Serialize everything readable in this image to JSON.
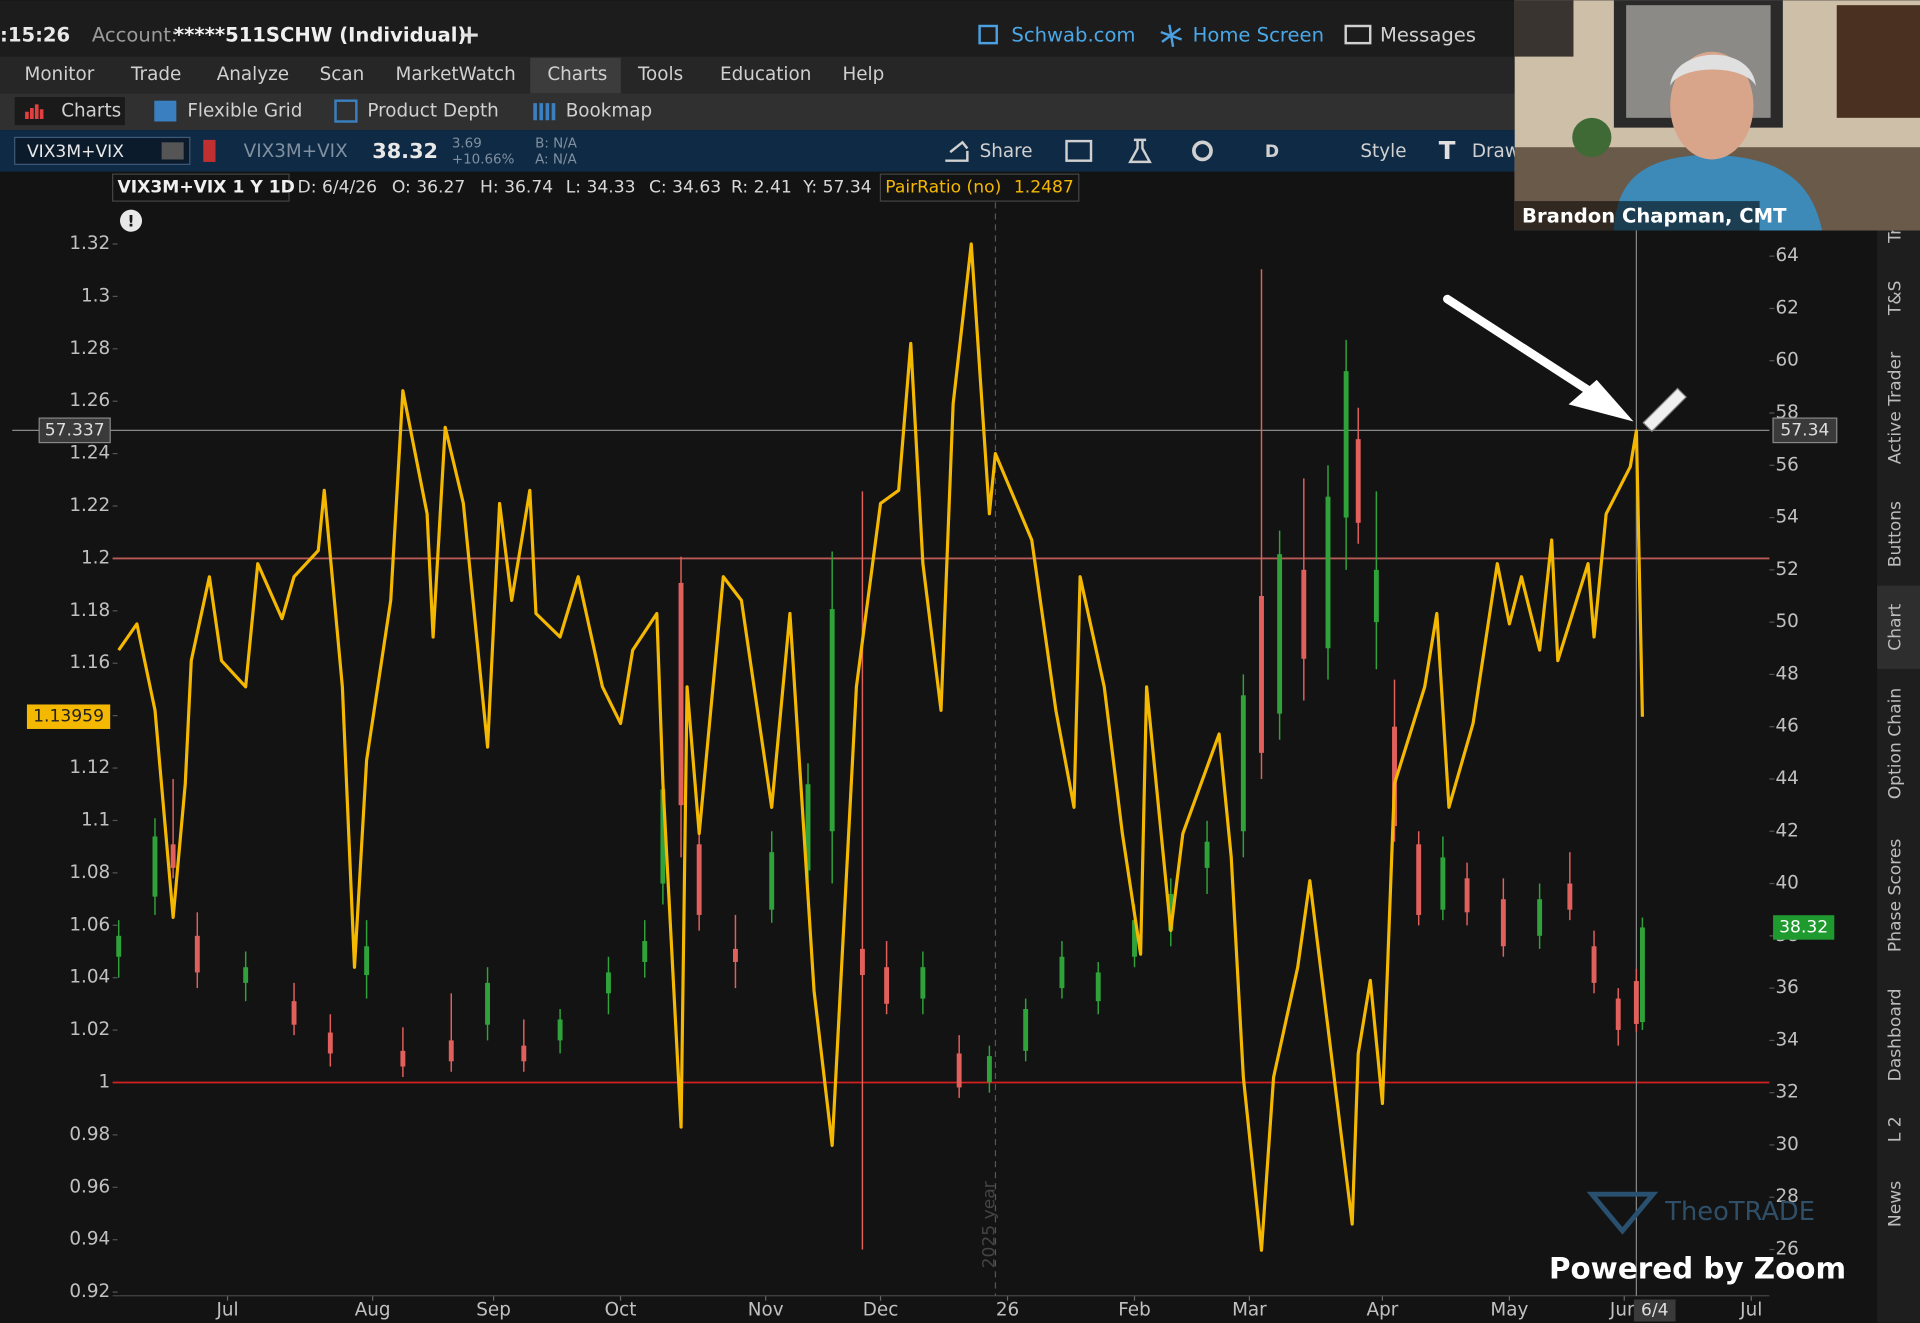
{
  "toolbar": {
    "time": ":15:26",
    "account_label": "Account:",
    "account": "*****511SCHW (Individual)",
    "links": [
      "Schwab.com",
      "Home Screen",
      "Messages"
    ]
  },
  "menu": [
    "Monitor",
    "Trade",
    "Analyze",
    "Scan",
    "MarketWatch",
    "Charts",
    "Tools",
    "Education",
    "Help"
  ],
  "subtabs": [
    "Charts",
    "Flexible Grid",
    "Product Depth",
    "Bookmap"
  ],
  "symbol_bar": {
    "symbol": "VIX3M+VIX",
    "description": "VIX3M+VIX",
    "last": "38.32",
    "change": "3.69",
    "change_pct": "+10.66%",
    "bid": "B: N/A",
    "ask": "A: N/A",
    "share": "Share",
    "period": "D",
    "style": "Style",
    "draw": "Draw"
  },
  "header": [
    "VIX3M+VIX 1 Y 1D",
    "D: 6/4/26",
    "O: 36.27",
    "H: 36.74",
    "L: 34.33",
    "C: 34.63",
    "R: 2.41",
    "Y: 57.34",
    "PairRatio (no)",
    "1.2487"
  ],
  "sidebar": [
    "Tr",
    "T&S",
    "Active Trader",
    "Buttons",
    "Chart",
    "Option Chain",
    "Phase Scores",
    "Dashboard",
    "L 2",
    "News"
  ],
  "video": {
    "name": "Brandon Chapman, CMT"
  },
  "watermark": "TheoTRADE",
  "zoom": "Powered by Zoom",
  "chart_data": {
    "type": "candlestick",
    "year_label": "2025 year",
    "xlim": [
      0,
      274
    ],
    "xticks": [
      {
        "value": 19,
        "label": "Jul"
      },
      {
        "value": 43,
        "label": "Aug"
      },
      {
        "value": 63,
        "label": "Sep"
      },
      {
        "value": 84,
        "label": "Oct"
      },
      {
        "value": 108,
        "label": "Nov"
      },
      {
        "value": 127,
        "label": "Dec"
      },
      {
        "value": 148,
        "label": "26"
      },
      {
        "value": 169,
        "label": "Feb"
      },
      {
        "value": 188,
        "label": "Mar"
      },
      {
        "value": 210,
        "label": "Apr"
      },
      {
        "value": 231,
        "label": "May"
      },
      {
        "value": 250,
        "label": "Jun"
      },
      {
        "value": 271,
        "label": "Jul"
      }
    ],
    "ylim": [
      0.9186,
      1.3359
    ],
    "yticks": [
      0.92,
      0.94,
      0.96,
      0.98,
      1,
      1.02,
      1.04,
      1.06,
      1.08,
      1.1,
      1.12,
      1.14,
      1.16,
      1.18,
      1.2,
      1.22,
      1.24,
      1.26,
      1.28,
      1.3,
      1.32
    ],
    "y2lim": [
      24.23,
      66.06
    ],
    "y2ticks": [
      26,
      28,
      30,
      32,
      34,
      36,
      38,
      40,
      42,
      44,
      46,
      48,
      50,
      52,
      54,
      56,
      58,
      60,
      62,
      64
    ],
    "hlines": [
      {
        "value": 1.2,
        "color": "#b85a55"
      },
      {
        "value": 1,
        "color": "#d42020"
      }
    ],
    "year_boundary": 146,
    "cursor": {
      "x": 252,
      "label": "6/4"
    },
    "crosshair": {
      "value": 57.337,
      "label": "57.34"
    },
    "series": [
      {
        "name": "VIX3M+VIX",
        "axis": "y2",
        "up_color": "#2fa33a",
        "down_color": "#e2605c",
        "x": [
          1,
          7,
          10,
          14,
          22,
          30,
          36,
          42,
          48,
          56,
          62,
          68,
          74,
          82,
          88,
          91,
          94,
          97,
          103,
          109,
          115,
          119,
          124,
          128,
          134,
          140,
          145,
          151,
          157,
          163,
          169,
          175,
          181,
          187,
          190,
          193,
          197,
          201,
          204,
          206,
          209,
          212,
          216,
          220,
          224,
          230,
          236,
          241,
          245,
          249,
          252,
          253
        ],
        "open": [
          37.2,
          39.5,
          41.5,
          38.0,
          36.2,
          35.5,
          34.3,
          36.5,
          33.6,
          34.0,
          34.6,
          33.8,
          34.0,
          35.8,
          37.0,
          40.0,
          51.5,
          41.5,
          37.5,
          39.0,
          40.5,
          42.0,
          37.5,
          36.8,
          35.6,
          33.5,
          32.4,
          33.6,
          36.0,
          35.5,
          37.2,
          38.2,
          40.6,
          42.0,
          51.0,
          46.5,
          52.0,
          49.0,
          54.0,
          57.0,
          50.0,
          46.0,
          41.5,
          39.0,
          40.2,
          39.4,
          38.0,
          40.0,
          37.6,
          35.6,
          36.27,
          34.7
        ],
        "high": [
          38.6,
          42.5,
          44.0,
          38.9,
          37.4,
          36.2,
          35.0,
          38.6,
          34.5,
          35.8,
          36.8,
          34.8,
          35.2,
          37.2,
          38.6,
          44.5,
          52.5,
          42.5,
          38.8,
          42.0,
          44.6,
          52.7,
          55.0,
          37.8,
          37.4,
          34.2,
          33.8,
          35.6,
          37.8,
          37.0,
          39.2,
          40.2,
          42.4,
          48.0,
          63.5,
          53.5,
          55.5,
          56.0,
          60.8,
          58.2,
          55.0,
          47.8,
          42.0,
          41.8,
          40.8,
          40.2,
          40.0,
          41.2,
          38.2,
          36.0,
          36.74,
          38.7
        ],
        "low": [
          36.4,
          38.8,
          40.2,
          36.0,
          35.5,
          34.2,
          33.0,
          35.6,
          32.6,
          32.8,
          34.0,
          32.8,
          33.5,
          35.0,
          36.4,
          39.2,
          41.0,
          38.2,
          36.0,
          38.5,
          39.8,
          40.0,
          26.0,
          35.0,
          35.0,
          31.8,
          32.0,
          33.2,
          35.6,
          35.0,
          36.8,
          37.6,
          39.6,
          41.0,
          44.0,
          45.5,
          47.0,
          47.8,
          52.0,
          53.0,
          48.2,
          41.6,
          38.4,
          38.6,
          38.4,
          37.2,
          37.5,
          38.6,
          35.8,
          33.8,
          34.33,
          34.4
        ],
        "close": [
          38.0,
          41.8,
          40.6,
          36.6,
          36.8,
          34.6,
          33.5,
          37.6,
          33.0,
          33.2,
          36.2,
          33.2,
          34.8,
          36.6,
          37.8,
          43.6,
          43.0,
          38.8,
          37.0,
          41.2,
          43.8,
          50.5,
          36.5,
          35.4,
          36.8,
          32.2,
          33.4,
          35.2,
          37.2,
          36.6,
          38.6,
          39.6,
          41.6,
          47.2,
          45.0,
          52.6,
          48.6,
          54.8,
          59.6,
          53.8,
          52.0,
          42.2,
          38.8,
          41.0,
          38.9,
          37.6,
          39.4,
          39.0,
          36.2,
          34.4,
          34.63,
          38.32
        ]
      },
      {
        "name": "PairRatio",
        "axis": "y",
        "color": "#f5b800",
        "x": [
          1,
          4,
          7,
          10,
          12,
          13,
          16,
          18,
          22,
          24,
          28,
          30,
          34,
          35,
          38,
          40,
          42,
          46,
          48,
          52,
          53,
          55,
          58,
          62,
          64,
          66,
          69,
          70,
          74,
          77,
          81,
          84,
          86,
          90,
          91,
          94,
          95,
          97,
          101,
          104,
          109,
          112,
          116,
          119,
          123,
          127,
          130,
          132,
          134,
          137,
          139,
          142,
          145,
          146,
          152,
          156,
          159,
          160,
          164,
          167,
          170,
          171,
          175,
          177,
          183,
          185,
          187,
          190,
          192,
          196,
          198,
          202,
          205,
          206,
          208,
          210,
          212,
          217,
          219,
          221,
          225,
          229,
          231,
          233,
          236,
          238,
          239,
          244,
          245,
          247,
          251,
          252,
          253
        ],
        "values": [
          1.165,
          1.175,
          1.142,
          1.063,
          1.114,
          1.161,
          1.193,
          1.161,
          1.151,
          1.198,
          1.177,
          1.193,
          1.203,
          1.226,
          1.151,
          1.044,
          1.123,
          1.184,
          1.264,
          1.217,
          1.17,
          1.25,
          1.221,
          1.128,
          1.221,
          1.184,
          1.226,
          1.179,
          1.17,
          1.193,
          1.151,
          1.137,
          1.165,
          1.179,
          1.114,
          0.983,
          1.151,
          1.095,
          1.193,
          1.184,
          1.105,
          1.179,
          1.035,
          0.976,
          1.151,
          1.221,
          1.226,
          1.282,
          1.198,
          1.142,
          1.259,
          1.32,
          1.217,
          1.24,
          1.207,
          1.142,
          1.105,
          1.193,
          1.151,
          1.095,
          1.049,
          1.151,
          1.058,
          1.095,
          1.133,
          1.086,
          1.002,
          0.936,
          1.002,
          1.044,
          1.077,
          1.002,
          0.946,
          1.011,
          1.039,
          0.992,
          1.114,
          1.151,
          1.179,
          1.105,
          1.137,
          1.198,
          1.175,
          1.193,
          1.165,
          1.207,
          1.161,
          1.198,
          1.17,
          1.217,
          1.235,
          1.2487,
          1.13959
        ]
      }
    ]
  }
}
